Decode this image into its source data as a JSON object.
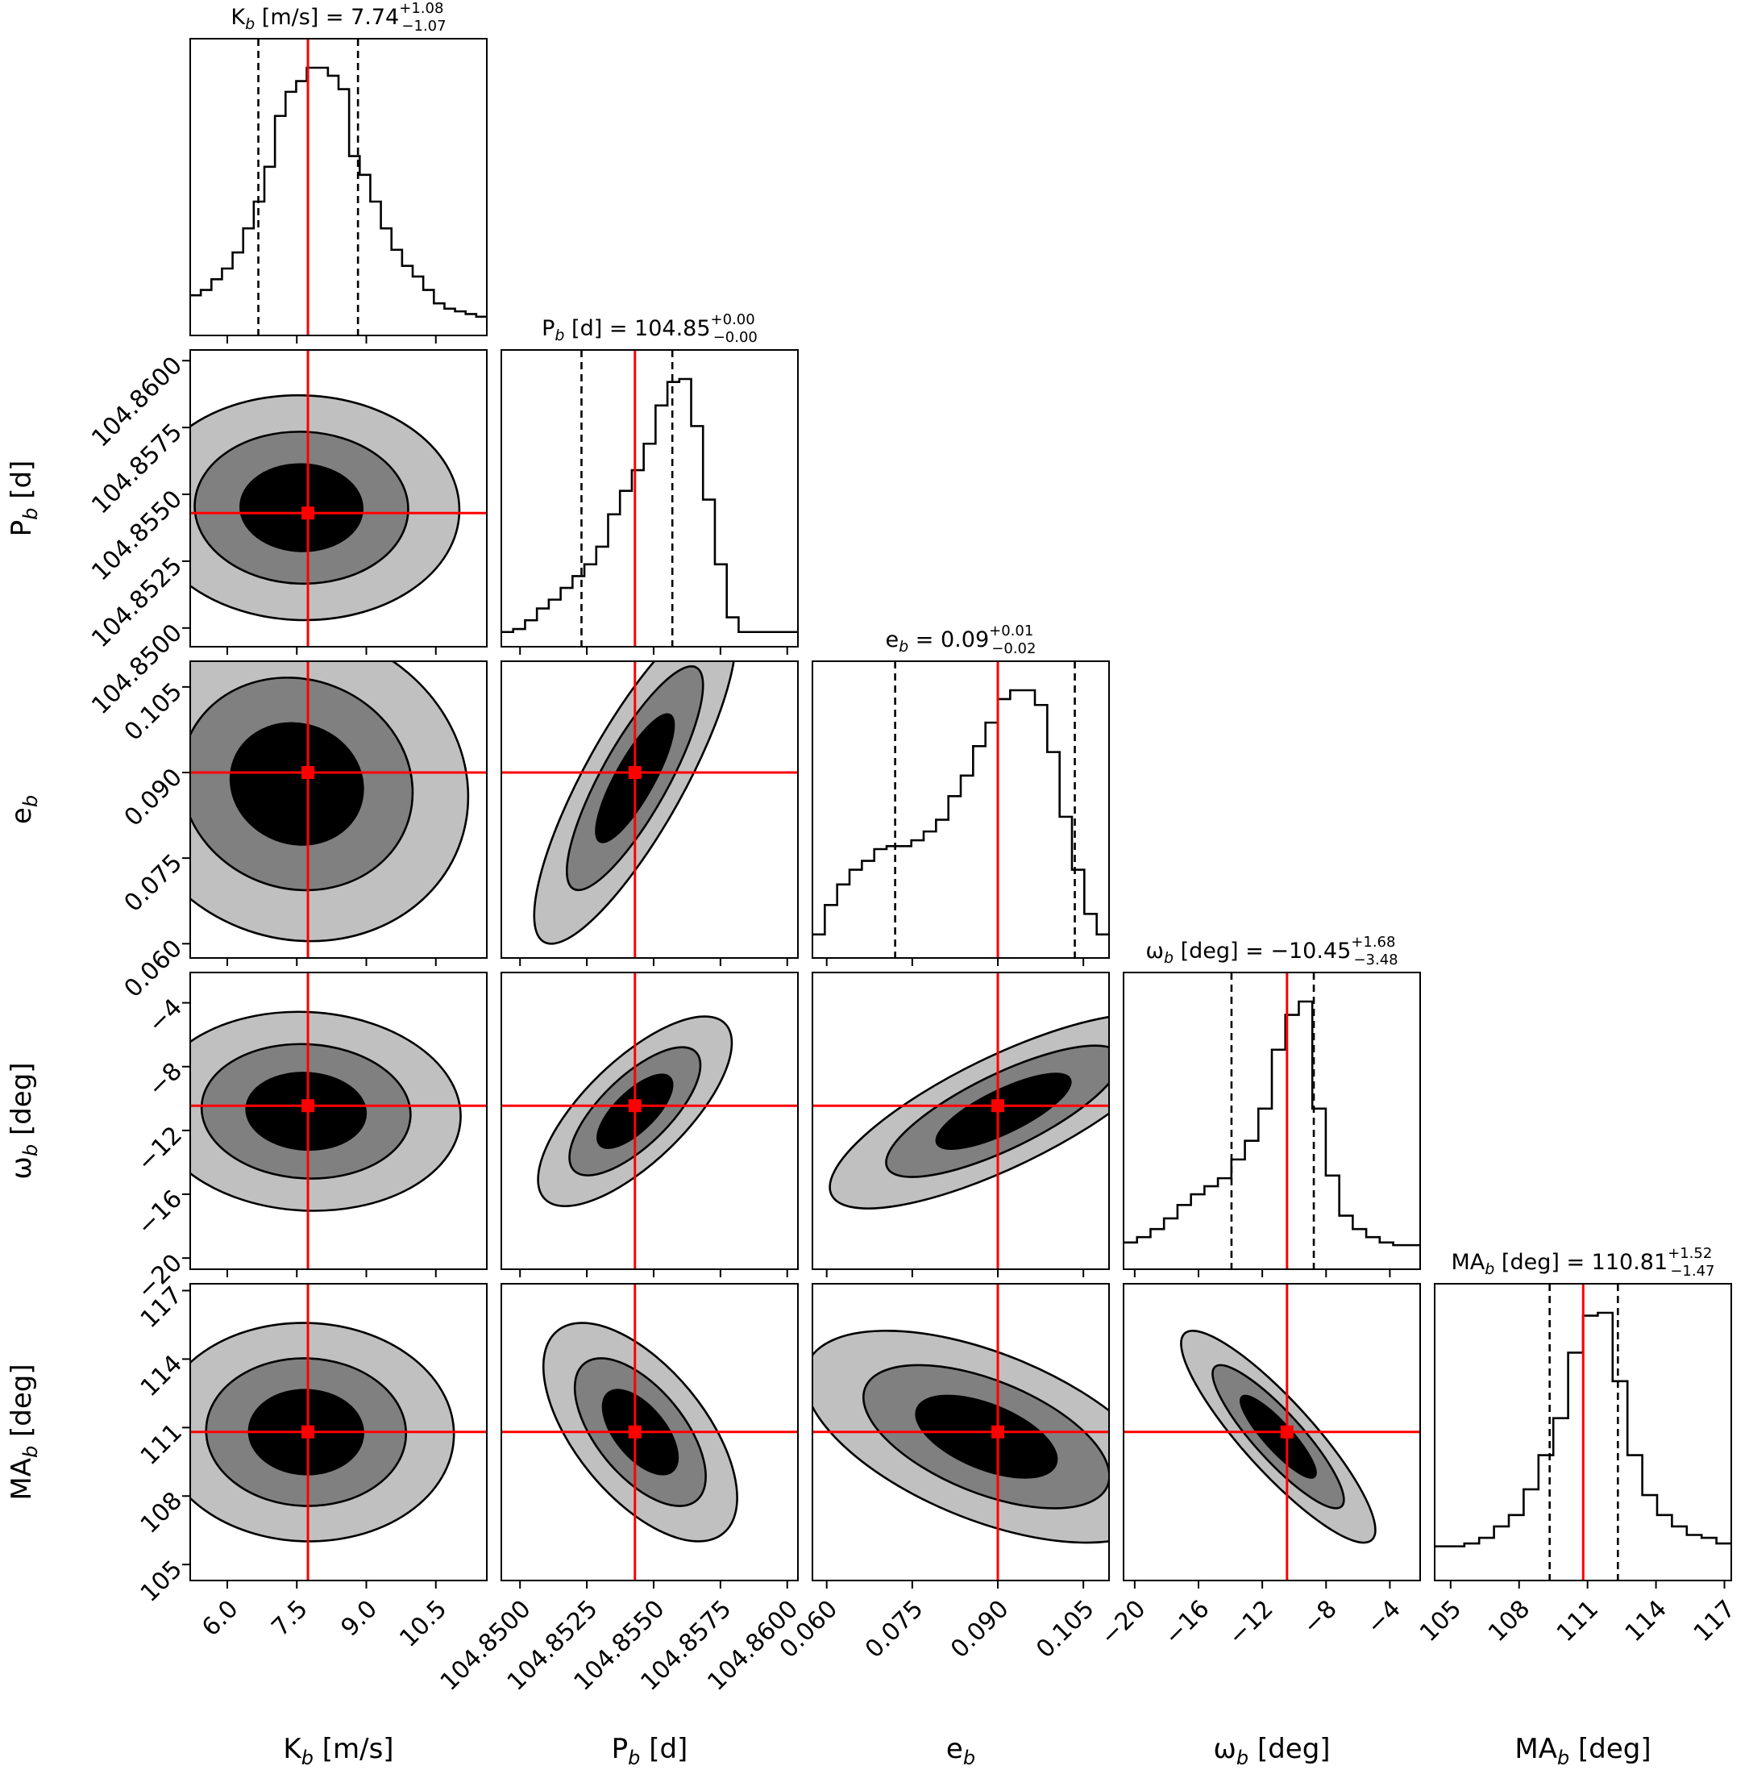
{
  "chart_data": {
    "type": "corner",
    "parameters": [
      {
        "key": "K",
        "label_main": "K",
        "label_sub": "b",
        "label_rest": " [m/s]",
        "mode": "ticks"
      },
      {
        "key": "P",
        "label_main": "P",
        "label_sub": "b",
        "label_rest": " [d]",
        "mode": "ticks"
      },
      {
        "key": "e",
        "label_main": "e",
        "label_sub": "b",
        "label_rest": "",
        "mode": "ticks"
      },
      {
        "key": "w",
        "label_main": "ω",
        "label_sub": "b",
        "label_rest": " [deg]",
        "mode": "ticks"
      },
      {
        "key": "MA",
        "label_main": "MA",
        "label_sub": "b",
        "label_rest": " [deg]",
        "mode": "ticks"
      }
    ],
    "ranges": [
      [
        5.2,
        11.6
      ],
      [
        104.8493,
        104.8604
      ],
      [
        0.0575,
        0.1095
      ],
      [
        -20.7,
        -2.1
      ],
      [
        104.3,
        117.3
      ]
    ],
    "ticks": [
      {
        "values": [
          6.0,
          7.5,
          9.0,
          10.5
        ],
        "labels": [
          "6.0",
          "7.5",
          "9.0",
          "10.5"
        ]
      },
      {
        "values": [
          104.85,
          104.8525,
          104.855,
          104.8575,
          104.86
        ],
        "labels": [
          "104.8500",
          "104.8525",
          "104.8550",
          "104.8575",
          "104.8600"
        ]
      },
      {
        "values": [
          0.06,
          0.075,
          0.09,
          0.105
        ],
        "labels": [
          "0.060",
          "0.075",
          "0.090",
          "0.105"
        ]
      },
      {
        "values": [
          -20,
          -16,
          -12,
          -8,
          -4
        ],
        "labels": [
          "−20",
          "−16",
          "−12",
          "−8",
          "−4"
        ]
      },
      {
        "values": [
          105,
          108,
          111,
          114,
          117
        ],
        "labels": [
          "105",
          "108",
          "111",
          "114",
          "117"
        ]
      }
    ],
    "truth": [
      7.74,
      104.8543,
      0.09,
      -10.45,
      110.81
    ],
    "quantiles": [
      [
        6.67,
        8.82
      ],
      [
        104.8523,
        104.8557
      ],
      [
        0.072,
        0.1035
      ],
      [
        -13.93,
        -8.77
      ],
      [
        109.34,
        112.33
      ]
    ],
    "titles": [
      {
        "main": "K",
        "sub": "b",
        "rest": " [m/s] = 7.74",
        "plus": "+1.08",
        "minus": "−1.07"
      },
      {
        "main": "P",
        "sub": "b",
        "rest": " [d] = 104.85",
        "plus": "+0.00",
        "minus": "−0.00"
      },
      {
        "main": "e",
        "sub": "b",
        "rest": " = 0.09",
        "plus": "+0.01",
        "minus": "−0.02"
      },
      {
        "main": "ω",
        "sub": "b",
        "rest": " [deg] = −10.45",
        "plus": "+1.68",
        "minus": "−3.48"
      },
      {
        "main": "MA",
        "sub": "b",
        "rest": " [deg] = 110.81",
        "plus": "+1.52",
        "minus": "−1.47"
      }
    ],
    "histograms": [
      [
        0.15,
        0.17,
        0.21,
        0.25,
        0.31,
        0.4,
        0.5,
        0.63,
        0.82,
        0.91,
        0.95,
        1.0,
        1.0,
        0.97,
        0.92,
        0.67,
        0.6,
        0.5,
        0.4,
        0.32,
        0.26,
        0.22,
        0.17,
        0.12,
        0.1,
        0.09,
        0.08,
        0.07
      ],
      [
        0.05,
        0.06,
        0.09,
        0.13,
        0.16,
        0.2,
        0.24,
        0.28,
        0.34,
        0.45,
        0.53,
        0.6,
        0.69,
        0.82,
        0.9,
        0.91,
        0.75,
        0.5,
        0.28,
        0.1,
        0.05,
        0.05,
        0.05,
        0.05,
        0.05
      ],
      [
        0.08,
        0.18,
        0.25,
        0.3,
        0.33,
        0.37,
        0.38,
        0.38,
        0.4,
        0.43,
        0.47,
        0.55,
        0.62,
        0.72,
        0.8,
        0.88,
        0.91,
        0.91,
        0.86,
        0.7,
        0.48,
        0.3,
        0.15,
        0.08
      ],
      [
        0.1,
        0.12,
        0.15,
        0.19,
        0.24,
        0.28,
        0.31,
        0.34,
        0.41,
        0.48,
        0.6,
        0.82,
        0.95,
        1.0,
        0.6,
        0.35,
        0.2,
        0.15,
        0.12,
        0.1,
        0.09,
        0.09
      ],
      [
        0.12,
        0.12,
        0.13,
        0.15,
        0.19,
        0.23,
        0.32,
        0.44,
        0.57,
        0.8,
        0.93,
        0.94,
        0.7,
        0.44,
        0.3,
        0.23,
        0.19,
        0.16,
        0.15,
        0.13
      ]
    ],
    "pairs": [
      {
        "row": 1,
        "col": 0,
        "cx": 7.6,
        "cy": 104.8545,
        "sx": 2.35,
        "sy": 0.0029,
        "rho": -0.02
      },
      {
        "row": 2,
        "col": 0,
        "cx": 7.5,
        "cy": 0.088,
        "sx": 2.55,
        "sy": 0.019,
        "rho": -0.08
      },
      {
        "row": 2,
        "col": 1,
        "cx": 104.8543,
        "cy": 0.089,
        "sx": 0.0026,
        "sy": 0.02,
        "rho": 0.83
      },
      {
        "row": 3,
        "col": 0,
        "cx": 7.7,
        "cy": -10.8,
        "sx": 2.3,
        "sy": 4.3,
        "rho": -0.05
      },
      {
        "row": 3,
        "col": 1,
        "cx": 104.8543,
        "cy": -10.8,
        "sx": 0.0025,
        "sy": 4.1,
        "rho": 0.72
      },
      {
        "row": 3,
        "col": 2,
        "cx": 0.091,
        "cy": -10.8,
        "sx": 0.021,
        "sy": 4.2,
        "rho": 0.78
      },
      {
        "row": 4,
        "col": 0,
        "cx": 7.7,
        "cy": 110.8,
        "sx": 2.2,
        "sy": 3.3,
        "rho": -0.02
      },
      {
        "row": 4,
        "col": 1,
        "cx": 104.8545,
        "cy": 110.8,
        "sx": 0.0025,
        "sy": 3.3,
        "rho": -0.6
      },
      {
        "row": 4,
        "col": 2,
        "cx": 0.088,
        "cy": 110.6,
        "sx": 0.022,
        "sy": 3.2,
        "rho": -0.55
      },
      {
        "row": 4,
        "col": 3,
        "cx": -11.0,
        "cy": 110.6,
        "sx": 4.2,
        "sy": 3.2,
        "rho": -0.88
      }
    ],
    "contour_fills": [
      "#c0c0c0",
      "#808080",
      "#000000"
    ],
    "truth_color": "#ff0000",
    "grid": false,
    "legend": "none"
  }
}
